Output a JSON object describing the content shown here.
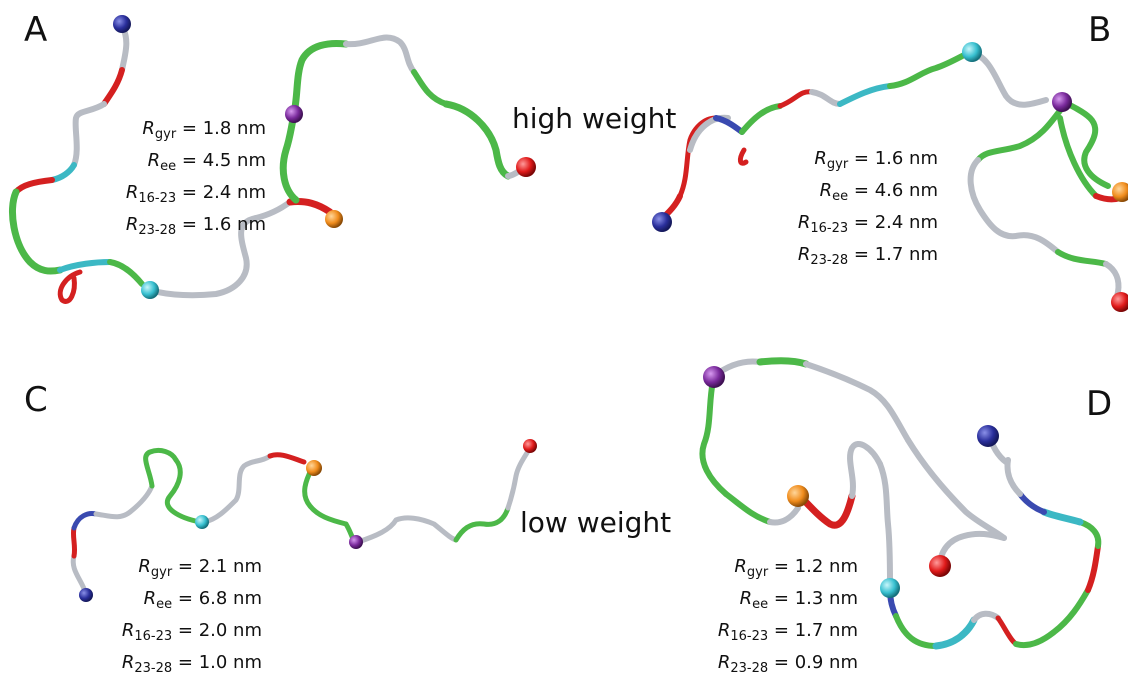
{
  "weights": {
    "high": "high weight",
    "low": "low weight"
  },
  "colors": {
    "coil": "#b8bcc4",
    "strand": "#4cb848",
    "helix": "#d42020",
    "cyan_segment": "#3cb8c4",
    "blue_segment": "#3a4ab0",
    "bead_blue": "#2a2f9c",
    "bead_cyan": "#38c0d0",
    "bead_purple": "#7a2a9c",
    "bead_orange": "#f08c1c",
    "bead_red": "#e01a1a"
  },
  "panels": [
    {
      "letter": "A",
      "measures": [
        {
          "sym": "R",
          "sub": "gyr",
          "value": "= 1.8 nm"
        },
        {
          "sym": "R",
          "sub": "ee",
          "value": "= 4.5 nm"
        },
        {
          "sym": "R",
          "sub": "16-23",
          "value": "= 2.4 nm"
        },
        {
          "sym": "R",
          "sub": "23-28",
          "value": "= 1.6 nm"
        }
      ],
      "beads": [
        "blue",
        "purple",
        "red",
        "orange",
        "cyan"
      ]
    },
    {
      "letter": "B",
      "measures": [
        {
          "sym": "R",
          "sub": "gyr",
          "value": "= 1.6 nm"
        },
        {
          "sym": "R",
          "sub": "ee",
          "value": "= 4.6 nm"
        },
        {
          "sym": "R",
          "sub": "16-23",
          "value": "= 2.4 nm"
        },
        {
          "sym": "R",
          "sub": "23-28",
          "value": "= 1.7 nm"
        }
      ],
      "beads": [
        "cyan",
        "purple",
        "orange",
        "red",
        "blue"
      ]
    },
    {
      "letter": "C",
      "measures": [
        {
          "sym": "R",
          "sub": "gyr",
          "value": "= 2.1 nm"
        },
        {
          "sym": "R",
          "sub": "ee",
          "value": "= 6.8 nm"
        },
        {
          "sym": "R",
          "sub": "16-23",
          "value": "= 2.0 nm"
        },
        {
          "sym": "R",
          "sub": "23-28",
          "value": "= 1.0 nm"
        }
      ],
      "beads": [
        "blue",
        "cyan",
        "orange",
        "purple",
        "red"
      ]
    },
    {
      "letter": "D",
      "measures": [
        {
          "sym": "R",
          "sub": "gyr",
          "value": "= 1.2 nm"
        },
        {
          "sym": "R",
          "sub": "ee",
          "value": "= 1.3 nm"
        },
        {
          "sym": "R",
          "sub": "16-23",
          "value": "= 1.7 nm"
        },
        {
          "sym": "R",
          "sub": "23-28",
          "value": "= 0.9 nm"
        }
      ],
      "beads": [
        "purple",
        "orange",
        "red",
        "blue",
        "cyan"
      ]
    }
  ]
}
